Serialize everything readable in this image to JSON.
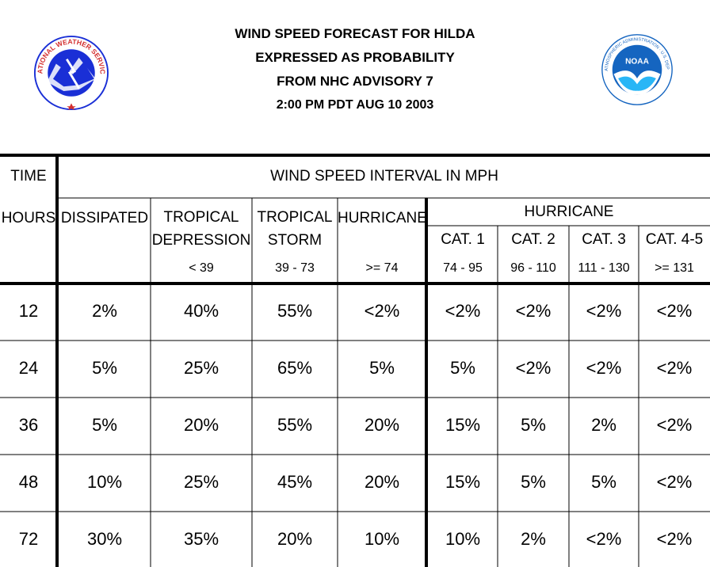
{
  "title_lines": [
    "WIND SPEED FORECAST FOR HILDA",
    "EXPRESSED AS PROBABILITY",
    "FROM NHC ADVISORY   7",
    "2:00 PM PDT AUG 10 2003"
  ],
  "logos": {
    "nws": "NATIONAL WEATHER SERVICE",
    "noaa": "NOAA",
    "noaa_ring": "NATIONAL OCEANIC AND ATMOSPHERIC ADMINISTRATION · U.S. DEPARTMENT OF COMMERCE"
  },
  "header": {
    "time": "TIME",
    "interval": "WIND SPEED INTERVAL IN MPH",
    "hours": "HOURS",
    "dissipated": "DISSIPATED",
    "td_line1": "TROPICAL",
    "td_line2": "DEPRESSION",
    "td_range": "< 39",
    "ts_line1": "TROPICAL",
    "ts_line2": "STORM",
    "ts_range": "39 - 73",
    "hurricane": "HURRICANE",
    "hurricane_range": ">= 74",
    "hurricane_group": "HURRICANE",
    "cat1": "CAT. 1",
    "cat1_range": "74 - 95",
    "cat2": "CAT. 2",
    "cat2_range": "96 - 110",
    "cat3": "CAT. 3",
    "cat3_range": "111 - 130",
    "cat45": "CAT. 4-5",
    "cat45_range": ">= 131"
  },
  "rows": [
    {
      "hours": "12",
      "values": [
        "2%",
        "40%",
        "55%",
        "<2%",
        "<2%",
        "<2%",
        "<2%",
        "<2%"
      ]
    },
    {
      "hours": "24",
      "values": [
        "5%",
        "25%",
        "65%",
        "5%",
        "5%",
        "<2%",
        "<2%",
        "<2%"
      ]
    },
    {
      "hours": "36",
      "values": [
        "5%",
        "20%",
        "55%",
        "20%",
        "15%",
        "5%",
        "2%",
        "<2%"
      ]
    },
    {
      "hours": "48",
      "values": [
        "10%",
        "25%",
        "45%",
        "20%",
        "15%",
        "5%",
        "5%",
        "<2%"
      ]
    },
    {
      "hours": "72",
      "values": [
        "30%",
        "35%",
        "20%",
        "10%",
        "10%",
        "2%",
        "<2%",
        "<2%"
      ]
    }
  ],
  "colors": {
    "nws_blue": "#1a2fd6",
    "noaa_blue": "#1565c0",
    "noaa_light": "#29b6f6",
    "nws_red": "#d32f2f",
    "line": "#000000"
  }
}
